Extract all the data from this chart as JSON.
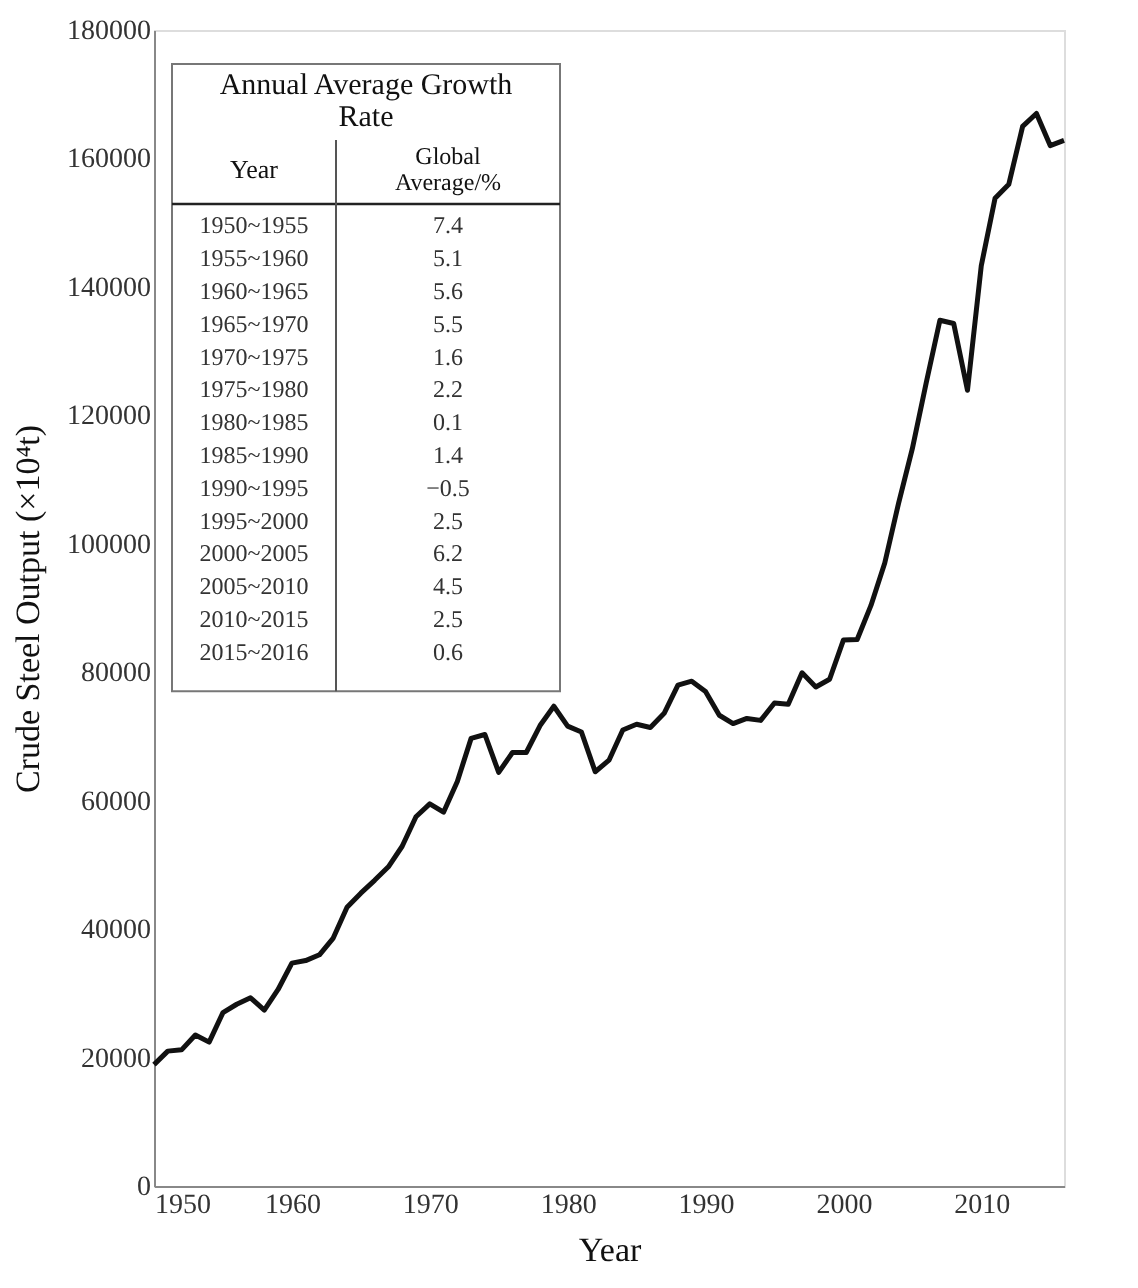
{
  "chart_data": {
    "type": "line",
    "xlabel": "Year",
    "ylabel": "Crude Steel Output (×10⁴t)",
    "x": [
      1950,
      1951,
      1952,
      1953,
      1954,
      1955,
      1956,
      1957,
      1958,
      1959,
      1960,
      1961,
      1962,
      1963,
      1964,
      1965,
      1966,
      1967,
      1968,
      1969,
      1970,
      1971,
      1972,
      1973,
      1974,
      1975,
      1976,
      1977,
      1978,
      1979,
      1980,
      1981,
      1982,
      1983,
      1984,
      1985,
      1986,
      1987,
      1988,
      1989,
      1990,
      1991,
      1992,
      1993,
      1994,
      1995,
      1996,
      1997,
      1998,
      1999,
      2000,
      2001,
      2002,
      2003,
      2004,
      2005,
      2006,
      2007,
      2008,
      2009,
      2010,
      2011,
      2012,
      2013,
      2014,
      2015,
      2016
    ],
    "series": [
      {
        "color": "#111111",
        "values": [
          18900,
          21000,
          21200,
          23500,
          22400,
          27000,
          28300,
          29300,
          27400,
          30600,
          34700,
          35100,
          36000,
          38600,
          43400,
          45600,
          47600,
          49700,
          52900,
          57500,
          59500,
          58200,
          63000,
          69700,
          70300,
          64400,
          67500,
          67500,
          71700,
          74700,
          71600,
          70700,
          64500,
          66300,
          71000,
          71900,
          71400,
          73600,
          78000,
          78600,
          77000,
          73300,
          72000,
          72800,
          72500,
          75200,
          75000,
          79900,
          77700,
          78900,
          85000,
          85100,
          90400,
          97000,
          106300,
          114800,
          125000,
          134800,
          134300,
          123900,
          143300,
          153800,
          156000,
          165000,
          167000,
          162000,
          162800
        ]
      }
    ],
    "xlim": [
      1950,
      2016
    ],
    "xticks": [
      1950,
      1960,
      1970,
      1980,
      1990,
      2000,
      2010
    ],
    "ylim": [
      0,
      180000
    ],
    "yticks": [
      0,
      20000,
      40000,
      60000,
      80000,
      100000,
      120000,
      140000,
      160000,
      180000
    ],
    "grid": false,
    "marker": "none",
    "line_style": "solid",
    "annotations": [
      "Annual Average Growth Rate",
      "Year",
      "Global Average/%",
      "1950~1955",
      "7.4",
      "1955~1960",
      "5.1",
      "1960~1965",
      "5.6",
      "1965~1970",
      "5.5",
      "1970~1975",
      "1.6",
      "1975~1980",
      "2.2",
      "1980~1985",
      "0.1",
      "1985~1990",
      "1.4",
      "1990~1995",
      "−0.5",
      "1995~2000",
      "2.5",
      "2000~2005",
      "6.2",
      "2005~2010",
      "4.5",
      "2010~2015",
      "2.5",
      "2015~2016",
      "0.6"
    ]
  }
}
